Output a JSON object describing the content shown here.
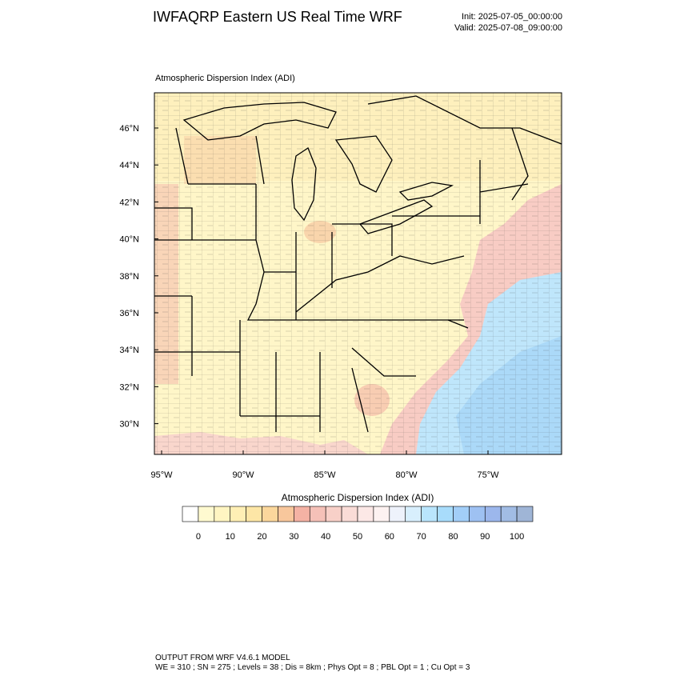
{
  "header": {
    "title": "IWFAQRP Eastern US Real Time WRF",
    "init": "Init: 2025-07-05_00:00:00",
    "valid": "Valid: 2025-07-08_09:00:00"
  },
  "map": {
    "label": "Atmospheric Dispersion Index   (ADI)",
    "lat_labels": [
      "46°N",
      "44°N",
      "42°N",
      "40°N",
      "38°N",
      "36°N",
      "34°N",
      "32°N",
      "30°N"
    ],
    "lon_labels": [
      "95°W",
      "90°W",
      "85°W",
      "80°W",
      "75°W"
    ]
  },
  "colorbar": {
    "title": "Atmospheric Dispersion Index  (ADI)",
    "range": [
      -5,
      105
    ],
    "ticks": [
      0,
      10,
      20,
      30,
      40,
      50,
      60,
      70,
      80,
      90,
      100
    ],
    "colors": [
      "#ffffff",
      "#fffad0",
      "#fff5c2",
      "#ffefb5",
      "#fde6a6",
      "#fbd79c",
      "#f8c79c",
      "#f4b2a4",
      "#f5c1b8",
      "#f8d0c8",
      "#fadcd7",
      "#fce8e6",
      "#fdf2f1",
      "#eef2fb",
      "#d8effd",
      "#b9e5fc",
      "#a8dcfb",
      "#a2cef8",
      "#9ec1f2",
      "#9cb7ec",
      "#a1bce4",
      "#9fb5d6"
    ]
  },
  "footer": {
    "line1": "OUTPUT FROM WRF V4.6.1 MODEL",
    "line2": "WE = 310 ; SN = 275 ; Levels = 38 ; Dis = 8km ; Phys Opt = 8 ; PBL Opt = 1 ; Cu Opt = 3"
  }
}
